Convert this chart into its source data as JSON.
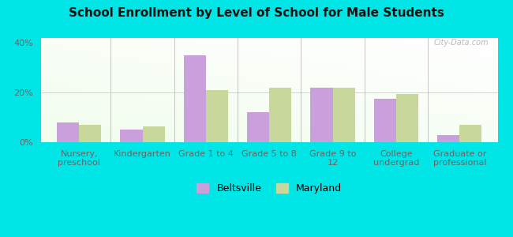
{
  "title": "School Enrollment by Level of School for Male Students",
  "categories": [
    "Nursery,\npreschool",
    "Kindergarten",
    "Grade 1 to 4",
    "Grade 5 to 8",
    "Grade 9 to\n12",
    "College\nundergrad",
    "Graduate or\nprofessional"
  ],
  "beltsville": [
    8.0,
    5.0,
    35.0,
    12.0,
    22.0,
    17.5,
    3.0
  ],
  "maryland": [
    7.0,
    6.5,
    21.0,
    22.0,
    22.0,
    19.5,
    7.0
  ],
  "beltsville_color": "#c9a0dc",
  "maryland_color": "#c8d89a",
  "background_color": "#00e5e5",
  "ylim": [
    0,
    42
  ],
  "yticks": [
    0,
    20,
    40
  ],
  "ytick_labels": [
    "0%",
    "20%",
    "40%"
  ],
  "legend_beltsville": "Beltsville",
  "legend_maryland": "Maryland",
  "title_fontsize": 11,
  "axis_label_fontsize": 8.0
}
